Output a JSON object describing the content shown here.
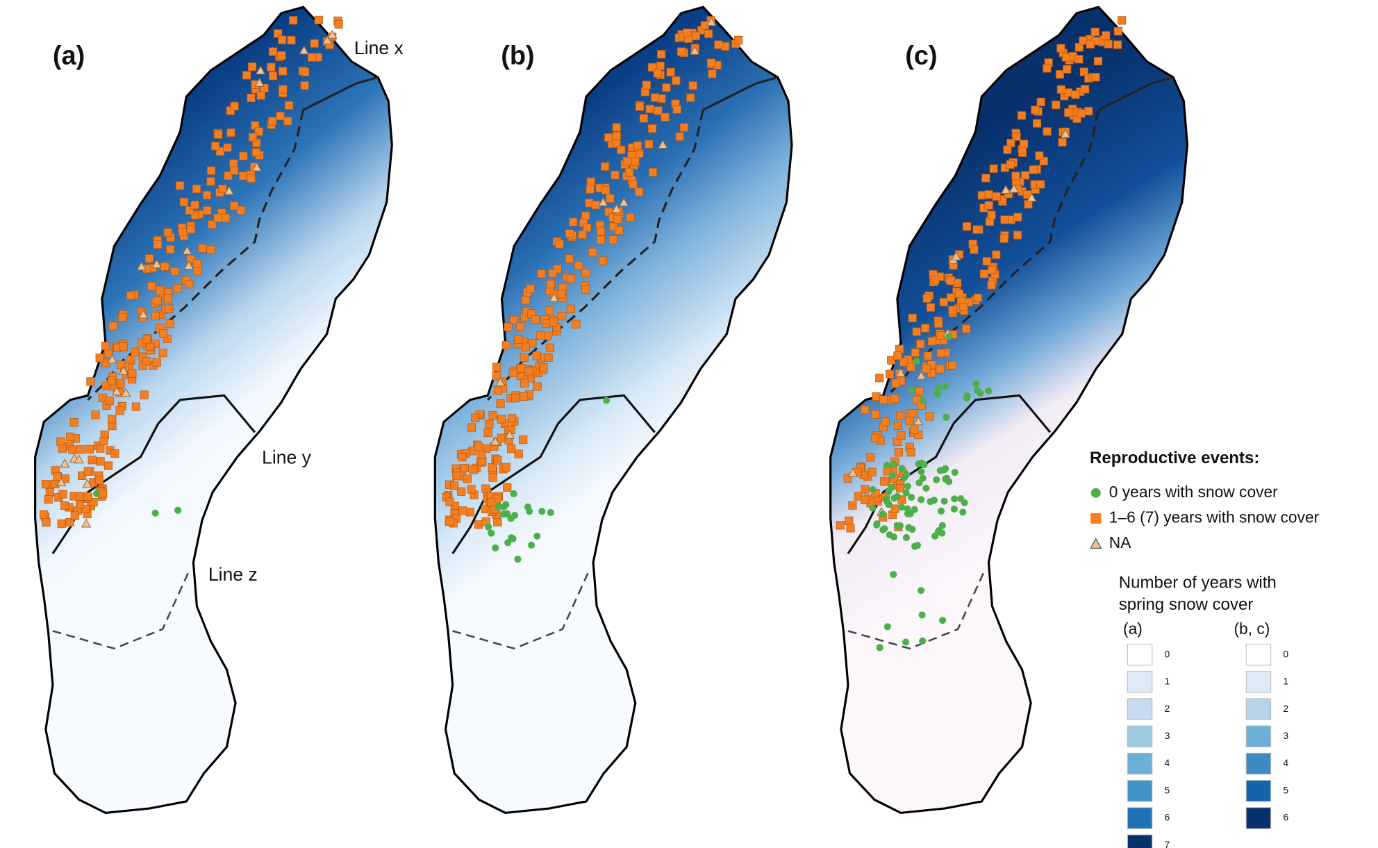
{
  "panels": [
    {
      "label": "(a)"
    },
    {
      "label": "(b)"
    },
    {
      "label": "(c)"
    }
  ],
  "lines": {
    "x": "Line x",
    "y": "Line y",
    "z": "Line z"
  },
  "legend": {
    "title": "Reproductive events:",
    "items": [
      {
        "label": "0 years with snow cover",
        "color": "#4daf4a"
      },
      {
        "label": "1–6 (7) years with snow cover",
        "color": "#f47e20"
      },
      {
        "label": "NA",
        "color": "#f4c18e"
      }
    ],
    "scale_title": [
      "Number of years with",
      "spring snow cover"
    ],
    "scales": [
      {
        "label": "(a)",
        "steps": [
          0,
          1,
          2,
          3,
          4,
          5,
          6,
          7
        ],
        "colors": [
          "#ffffff",
          "#deebf7",
          "#c6dbef",
          "#9ecae1",
          "#6baed6",
          "#4292c6",
          "#2171b5",
          "#08306b"
        ]
      },
      {
        "label": "(b, c)",
        "steps": [
          0,
          1,
          2,
          3,
          4,
          5,
          6
        ],
        "colors": [
          "#ffffff",
          "#deebf7",
          "#b7d4ea",
          "#6baed6",
          "#3c8cc3",
          "#1563aa",
          "#08306b"
        ]
      }
    ]
  }
}
